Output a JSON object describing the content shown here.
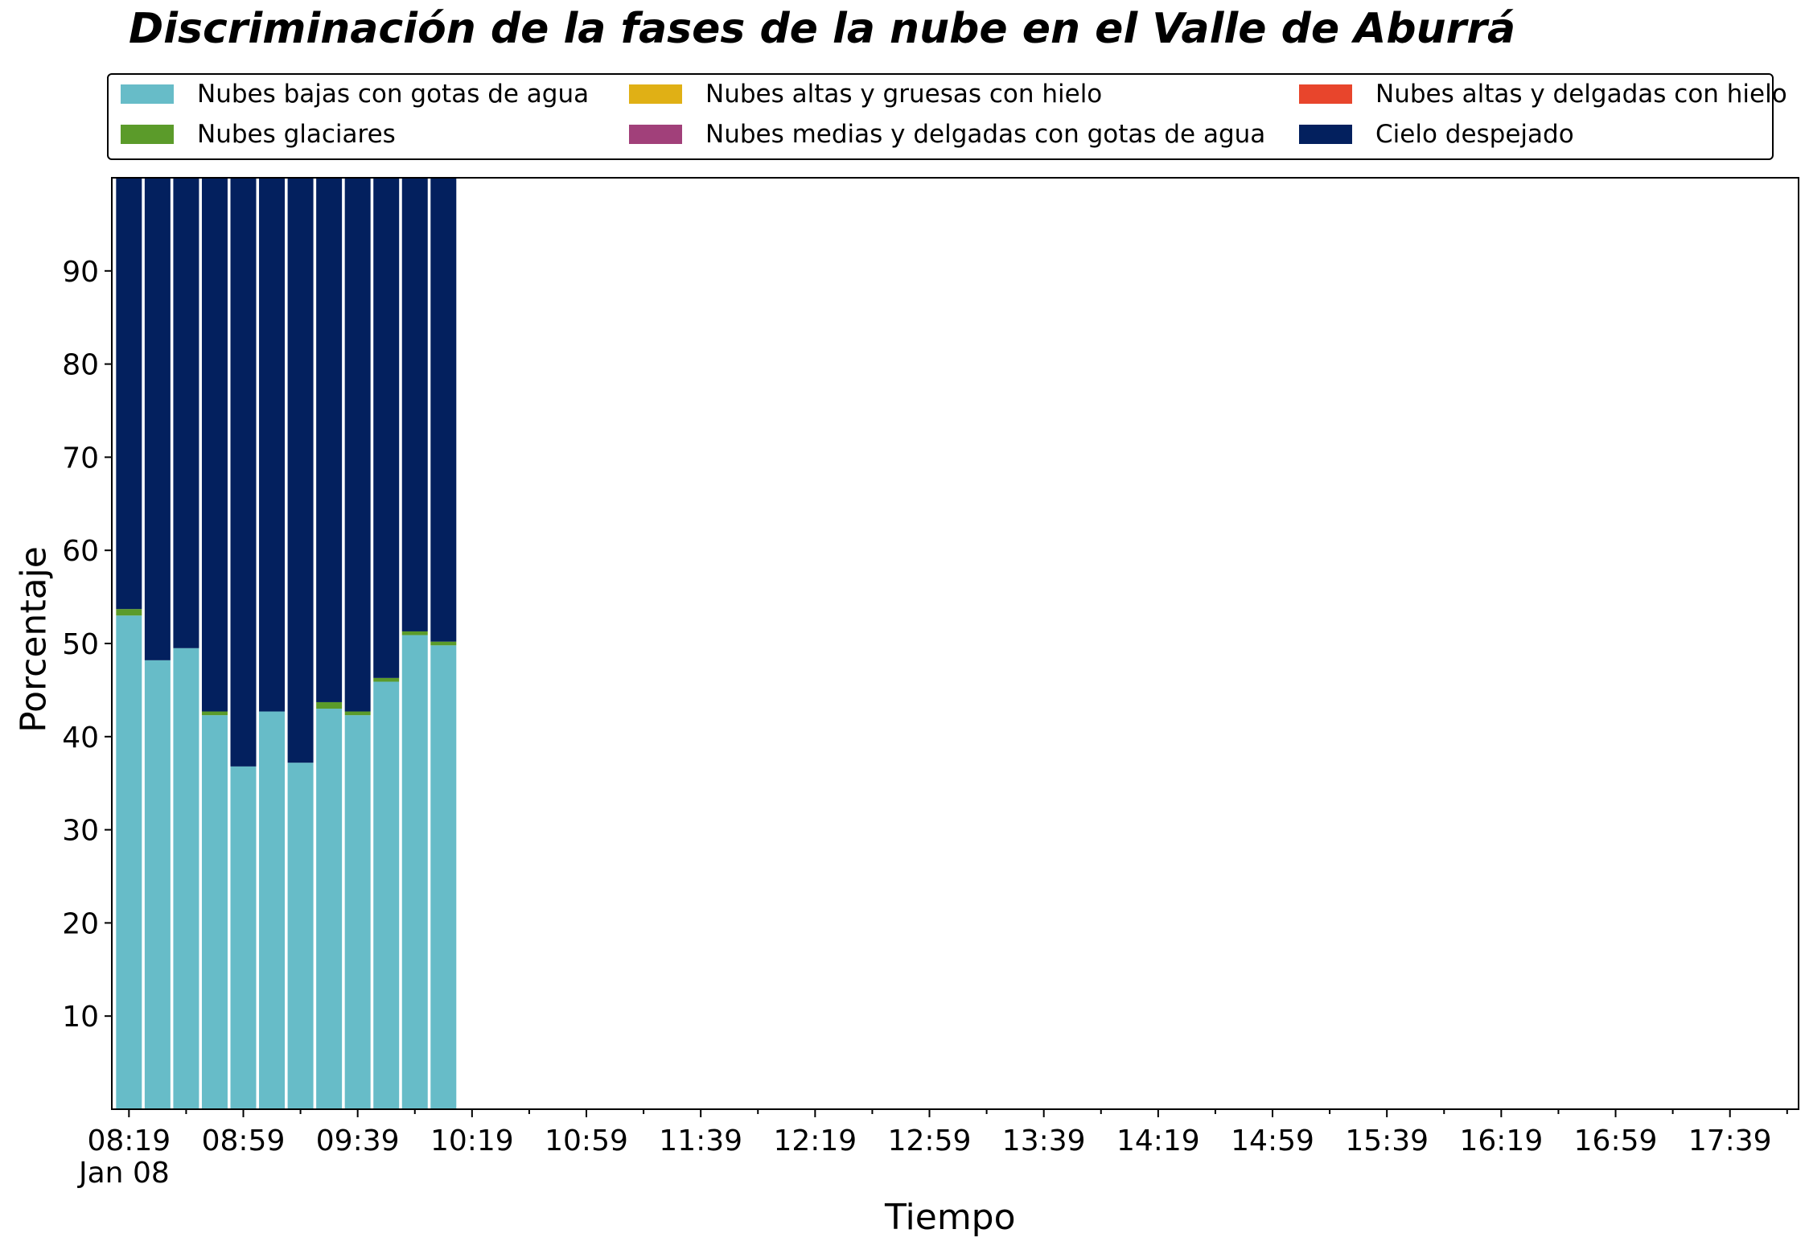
{
  "chart_data": {
    "type": "bar",
    "stacked": true,
    "title": "Discriminación de la fases de la nube en el Valle de Aburrá",
    "xlabel": "Tiempo",
    "ylabel": "Porcentaje",
    "ylim": [
      0,
      100
    ],
    "yticks": [
      10,
      20,
      30,
      40,
      50,
      60,
      70,
      80,
      90
    ],
    "xlim": [
      "08:13",
      "18:03"
    ],
    "xticks": [
      "08:19",
      "08:59",
      "09:39",
      "10:19",
      "10:59",
      "11:39",
      "12:19",
      "12:59",
      "13:39",
      "14:19",
      "14:59",
      "15:39",
      "16:19",
      "16:59",
      "17:39"
    ],
    "xtick_date": "Jan 08",
    "minor_tick_interval_minutes": 20,
    "bar_width_minutes": 9,
    "grid": false,
    "legend_position": "top",
    "categories": [
      "08:19",
      "08:29",
      "08:39",
      "08:49",
      "08:59",
      "09:09",
      "09:19",
      "09:29",
      "09:39",
      "09:49",
      "09:59",
      "10:09"
    ],
    "series": [
      {
        "name": "Nubes bajas con gotas de agua",
        "color": "#67BCC8",
        "values": [
          53.0,
          48.2,
          49.5,
          42.3,
          36.8,
          42.7,
          37.2,
          43.0,
          42.3,
          45.9,
          50.9,
          49.8
        ]
      },
      {
        "name": "Nubes glaciares",
        "color": "#5B9B2A",
        "values": [
          0.7,
          0.0,
          0.0,
          0.4,
          0.0,
          0.0,
          0.0,
          0.7,
          0.4,
          0.4,
          0.4,
          0.4
        ]
      },
      {
        "name": "Nubes altas y gruesas con hielo",
        "color": "#E0B015",
        "values": [
          0,
          0,
          0,
          0,
          0,
          0,
          0,
          0,
          0,
          0,
          0,
          0
        ]
      },
      {
        "name": "Nubes medias y delgadas con gotas de agua",
        "color": "#A1407A",
        "values": [
          0,
          0,
          0,
          0,
          0,
          0,
          0,
          0,
          0,
          0,
          0,
          0
        ]
      },
      {
        "name": "Nubes altas y delgadas con hielo",
        "color": "#E8452C",
        "values": [
          0,
          0,
          0,
          0,
          0,
          0,
          0,
          0,
          0,
          0,
          0,
          0
        ]
      },
      {
        "name": "Cielo despejado",
        "color": "#03205E",
        "values": [
          46.3,
          51.8,
          50.5,
          57.3,
          63.2,
          57.3,
          62.8,
          56.3,
          57.3,
          53.7,
          48.7,
          49.8
        ]
      }
    ]
  }
}
